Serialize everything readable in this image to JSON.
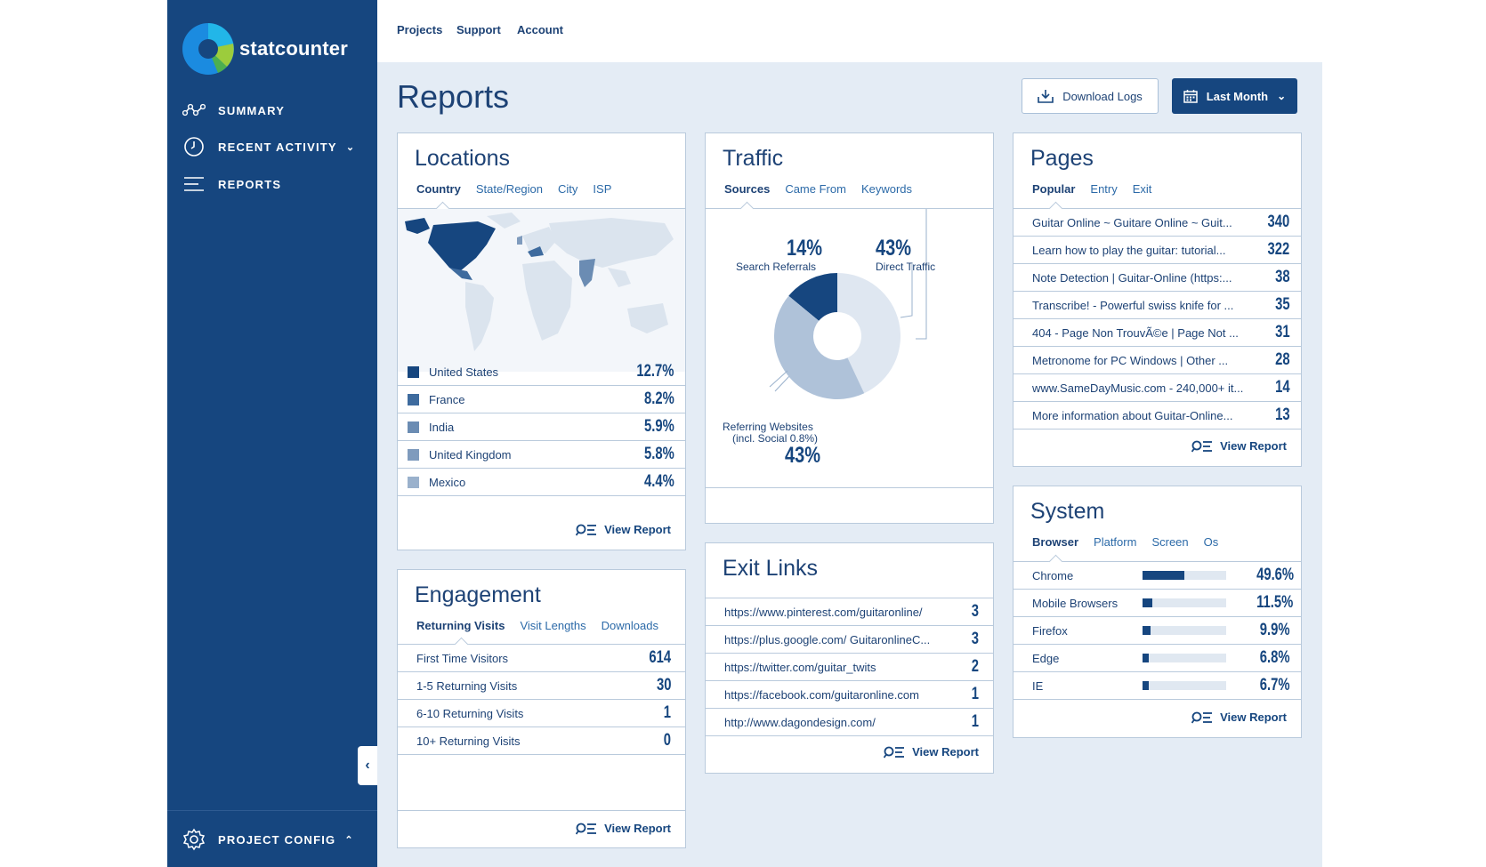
{
  "app": {
    "brand": "statcounter"
  },
  "sidebar": {
    "items": [
      {
        "label": "SUMMARY",
        "icon": "summary-icon"
      },
      {
        "label": "RECENT ACTIVITY",
        "icon": "clock-icon"
      },
      {
        "label": "REPORTS",
        "icon": "reports-icon"
      }
    ],
    "config_label": "PROJECT CONFIG"
  },
  "topnav": {
    "projects": "Projects",
    "support": "Support",
    "account": "Account"
  },
  "main": {
    "title": "Reports",
    "download_logs": "Download Logs",
    "date_range": "Last Month"
  },
  "colors": {
    "sidebar": "#16467f",
    "accent": "#16467f",
    "background": "#e4ecf5"
  },
  "view_report_label": "View Report",
  "locations": {
    "title": "Locations",
    "tabs": [
      "Country",
      "State/Region",
      "City",
      "ISP"
    ],
    "rows": [
      {
        "label": "United States",
        "value": "12.7%",
        "color": "#16467f"
      },
      {
        "label": "France",
        "value": "8.2%",
        "color": "#3e6b9e"
      },
      {
        "label": "India",
        "value": "5.9%",
        "color": "#6b8cb3"
      },
      {
        "label": "United Kingdom",
        "value": "5.8%",
        "color": "#7f9bbd"
      },
      {
        "label": "Mexico",
        "value": "4.4%",
        "color": "#9ab1cc"
      }
    ]
  },
  "traffic": {
    "title": "Traffic",
    "tabs": [
      "Sources",
      "Came From",
      "Keywords"
    ],
    "segments": [
      {
        "label": "Search Referrals",
        "pct": "14%",
        "value": 14,
        "color": "#16467f"
      },
      {
        "label": "Direct Traffic",
        "pct": "43%",
        "value": 43,
        "color": "#dfe7f1"
      },
      {
        "label": "Referring Websites",
        "sublabel": "(incl. Social 0.8%)",
        "pct": "43%",
        "value": 43,
        "color": "#afc2d9"
      }
    ]
  },
  "pages": {
    "title": "Pages",
    "tabs": [
      "Popular",
      "Entry",
      "Exit"
    ],
    "rows": [
      {
        "label": "Guitar Online ~ Guitare Online ~ Guit...",
        "value": "340"
      },
      {
        "label": "Learn how to play the guitar: tutorial...",
        "value": "322"
      },
      {
        "label": "Note Detection | Guitar-Online (https:...",
        "value": "38"
      },
      {
        "label": "Transcribe! - Powerful swiss knife for ...",
        "value": "35"
      },
      {
        "label": "404 - Page Non TrouvÃ©e | Page Not ...",
        "value": "31"
      },
      {
        "label": "Metronome for PC Windows | Other ...",
        "value": "28"
      },
      {
        "label": "www.SameDayMusic.com - 240,000+ it...",
        "value": "14"
      },
      {
        "label": "More information about Guitar-Online...",
        "value": "13"
      }
    ]
  },
  "engagement": {
    "title": "Engagement",
    "tabs": [
      "Returning Visits",
      "Visit Lengths",
      "Downloads"
    ],
    "rows": [
      {
        "label": "First Time Visitors",
        "value": "614"
      },
      {
        "label": "1-5 Returning Visits",
        "value": "30"
      },
      {
        "label": "6-10 Returning Visits",
        "value": "1"
      },
      {
        "label": "10+ Returning Visits",
        "value": "0"
      }
    ]
  },
  "exit_links": {
    "title": "Exit Links",
    "rows": [
      {
        "label": "https://www.pinterest.com/guitaronline/",
        "value": "3"
      },
      {
        "label": "https://plus.google.com/ GuitaronlineC...",
        "value": "3"
      },
      {
        "label": "https://twitter.com/guitar_twits",
        "value": "2"
      },
      {
        "label": "https://facebook.com/guitaronline.com",
        "value": "1"
      },
      {
        "label": "http://www.dagondesign.com/",
        "value": "1"
      }
    ]
  },
  "system": {
    "title": "System",
    "tabs": [
      "Browser",
      "Platform",
      "Screen",
      "Os"
    ],
    "rows": [
      {
        "label": "Chrome",
        "value": "49.6%",
        "fraction": 0.496
      },
      {
        "label": "Mobile Browsers",
        "value": "11.5%",
        "fraction": 0.115
      },
      {
        "label": "Firefox",
        "value": "9.9%",
        "fraction": 0.099
      },
      {
        "label": "Edge",
        "value": "6.8%",
        "fraction": 0.068
      },
      {
        "label": "IE",
        "value": "6.7%",
        "fraction": 0.067
      }
    ]
  }
}
